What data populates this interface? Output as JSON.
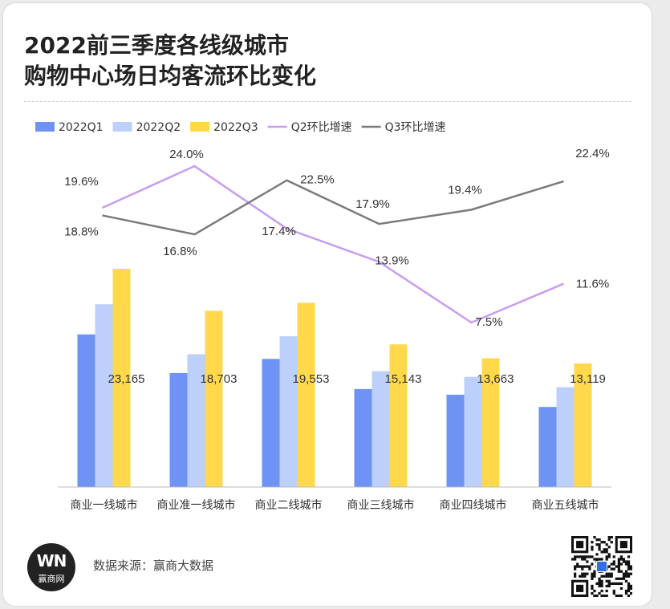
{
  "title_lines": [
    "2022前三季度各线级城市",
    "购物中心场日均客流环比变化"
  ],
  "source": "数据来源：赢商大数据",
  "logo": {
    "mark": "WN",
    "name": "赢商网"
  },
  "colors": {
    "q1": "#6e93f5",
    "q2": "#bcd0fb",
    "q3": "#ffd84b",
    "q2_line": "#c89cf0",
    "q3_line": "#7b7b7b"
  },
  "chart_data": {
    "type": "bar",
    "categories": [
      "商业一线城市",
      "商业准一线城市",
      "商业二线城市",
      "商业三线城市",
      "商业四线城市",
      "商业五线城市"
    ],
    "series": [
      {
        "name": "2022Q1",
        "type": "bar",
        "values": [
          16200,
          12100,
          13600,
          10400,
          9800,
          8500
        ]
      },
      {
        "name": "2022Q2",
        "type": "bar",
        "values": [
          19400,
          14100,
          16000,
          12300,
          11700,
          10600
        ]
      },
      {
        "name": "2022Q3",
        "type": "bar",
        "values": [
          23165,
          18703,
          19553,
          15143,
          13663,
          13119
        ]
      },
      {
        "name": "Q2环比增速",
        "type": "line",
        "values": [
          19.6,
          24.0,
          17.4,
          13.9,
          7.5,
          11.6
        ]
      },
      {
        "name": "Q3环比增速",
        "type": "line",
        "values": [
          18.8,
          16.8,
          22.5,
          17.9,
          19.4,
          22.4
        ]
      }
    ],
    "bar_labels": [
      "23,165",
      "18,703",
      "19,553",
      "15,143",
      "13,663",
      "13,119"
    ],
    "q2_labels": [
      "19.6%",
      "24.0%",
      "17.4%",
      "13.9%",
      "7.5%",
      "11.6%"
    ],
    "q3_labels": [
      "18.8%",
      "16.8%",
      "22.5%",
      "17.9%",
      "19.4%",
      "22.4%"
    ],
    "ylim_bars": [
      0,
      23165
    ],
    "ylim_lines": [
      7.5,
      24.0
    ],
    "legend_position": "top-left",
    "grid": false
  }
}
